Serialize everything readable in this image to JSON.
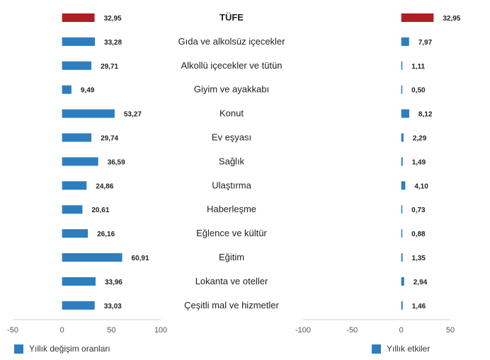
{
  "chart_data": {
    "type": "bar",
    "orientation": "horizontal",
    "colors": {
      "headline": "#b01e23",
      "series": "#2e7ebf",
      "axis": "#cfcfcf",
      "text": "#222222"
    },
    "categories": [
      "TÜFE",
      "Gıda ve alkolsüz içecekler",
      "Alkollü içecekler ve tütün",
      "Giyim ve ayakkabı",
      "Konut",
      "Ev eşyası",
      "Sağlık",
      "Ulaştırma",
      "Haberleşme",
      "Eğlence ve kültür",
      "Eğitim",
      "Lokanta ve oteller",
      "Çeşitli mal ve hizmetler"
    ],
    "headline_category": "TÜFE",
    "panels": [
      {
        "series_name": "Yıllık değişim oranları",
        "xlim": [
          -50,
          100
        ],
        "ticks": [
          -50,
          0,
          50,
          100
        ],
        "tick_labels": [
          "-50",
          "0",
          "50",
          "100"
        ],
        "values": [
          32.95,
          33.28,
          29.71,
          9.49,
          53.27,
          29.74,
          36.59,
          24.86,
          20.61,
          26.16,
          60.91,
          33.96,
          33.03
        ],
        "value_labels": [
          "32,95",
          "33,28",
          "29,71",
          "9,49",
          "53,27",
          "29,74",
          "36,59",
          "24,86",
          "20,61",
          "26,16",
          "60,91",
          "33,96",
          "33,03"
        ]
      },
      {
        "series_name": "Yıllık etkiler",
        "xlim": [
          -100,
          50
        ],
        "ticks": [
          -100,
          -50,
          0,
          50
        ],
        "tick_labels": [
          "-100",
          "-50",
          "0",
          "50"
        ],
        "values": [
          32.95,
          7.97,
          1.11,
          0.5,
          8.12,
          2.29,
          1.49,
          4.1,
          0.73,
          0.88,
          1.35,
          2.94,
          1.46
        ],
        "value_labels": [
          "32,95",
          "7,97",
          "1,11",
          "0,50",
          "8,12",
          "2,29",
          "1,49",
          "4,10",
          "0,73",
          "0,88",
          "1,35",
          "2,94",
          "1,46"
        ]
      }
    ],
    "legend": [
      "Yıllık değişim oranları",
      "Yıllık etkiler"
    ],
    "legend_position": "bottom",
    "grid": false
  }
}
